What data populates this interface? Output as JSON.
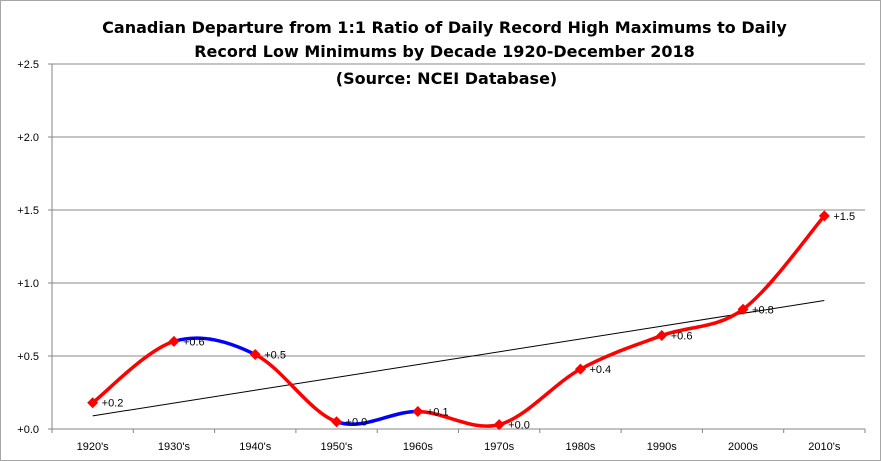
{
  "chart_data": {
    "type": "line",
    "title_lines": [
      "Canadian  Departure  from 1:1 Ratio of Daily Record High Maximums to Daily",
      "Record Low Minimums  by Decade 1920-December 2018",
      "(Source: NCEI Database)"
    ],
    "categories": [
      "1920's",
      "1930's",
      "1940's",
      "1950's",
      "1960s",
      "1970s",
      "1980s",
      "1990s",
      "2000s",
      "2010's"
    ],
    "series": [
      {
        "values": [
          0.18,
          0.6,
          0.51,
          0.05,
          0.12,
          0.03,
          0.41,
          0.64,
          0.82,
          1.46
        ],
        "labels": [
          "+0.2",
          "+0.6",
          "+0.5",
          "+0.0",
          "+0.1",
          "+0.0",
          "+0.4",
          "+0.6",
          "+0.8",
          "+1.5"
        ]
      }
    ],
    "trendline": {
      "start": 0.09,
      "end": 0.88
    },
    "y_ticks": [
      "+0.0",
      "+0.5",
      "+1.0",
      "+1.5",
      "+2.0",
      "+2.5"
    ],
    "ylim": [
      0,
      2.5
    ],
    "grid": true,
    "colors": {
      "line": "#ff0000",
      "decline_segments": "#0000ff",
      "markers": "#ff0000",
      "trend": "#000000",
      "grid": "#888888"
    }
  }
}
